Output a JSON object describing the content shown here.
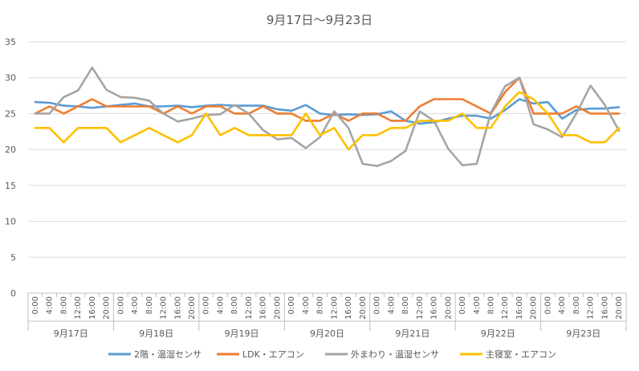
{
  "chart_data": {
    "type": "line",
    "title": "9月17日～9月23日",
    "xlabel": "",
    "ylabel": "",
    "ylim": [
      0,
      35
    ],
    "yticks": [
      0,
      5,
      10,
      15,
      20,
      25,
      30,
      35
    ],
    "grid": true,
    "legend_position": "bottom",
    "days": [
      "9月17日",
      "9月18日",
      "9月19日",
      "9月20日",
      "9月21日",
      "9月22日",
      "9月23日"
    ],
    "hours": [
      "0:00",
      "4:00",
      "8:00",
      "12:00",
      "16:00",
      "20:00"
    ],
    "series": [
      {
        "name": "2階・温湿センサ",
        "color": "#5B9BD5",
        "values": [
          26.6,
          26.5,
          26.1,
          26.0,
          25.8,
          26.0,
          26.2,
          26.4,
          26.0,
          26.0,
          26.1,
          25.9,
          26.1,
          26.2,
          26.1,
          26.1,
          26.1,
          25.6,
          25.4,
          26.2,
          25.0,
          24.8,
          24.9,
          24.8,
          24.9,
          25.3,
          24.0,
          23.6,
          23.8,
          24.3,
          24.7,
          24.7,
          24.3,
          25.5,
          27.0,
          26.4,
          26.6,
          24.3,
          25.5,
          25.7,
          25.7,
          25.9
        ]
      },
      {
        "name": "LDK・エアコン",
        "color": "#ED7D31",
        "values": [
          25.0,
          26.0,
          25.0,
          26.0,
          27.0,
          26.0,
          26.0,
          26.0,
          26.0,
          25.0,
          26.0,
          25.0,
          26.0,
          26.0,
          25.0,
          25.0,
          26.0,
          25.0,
          25.0,
          24.0,
          24.0,
          25.0,
          24.0,
          25.0,
          25.0,
          24.0,
          24.0,
          26.0,
          27.0,
          27.0,
          27.0,
          26.0,
          25.0,
          28.0,
          30.0,
          25.0,
          25.0,
          25.0,
          26.0,
          25.0,
          25.0,
          25.0
        ]
      },
      {
        "name": "外まわり・温湿センサ",
        "color": "#A5A5A5",
        "values": [
          25.0,
          25.0,
          27.3,
          28.2,
          31.4,
          28.3,
          27.3,
          27.2,
          26.8,
          25.0,
          23.9,
          24.3,
          24.8,
          24.9,
          26.2,
          25.0,
          22.7,
          21.4,
          21.6,
          20.2,
          21.7,
          25.3,
          23.0,
          18.0,
          17.7,
          18.4,
          19.8,
          25.3,
          24.0,
          20.1,
          17.8,
          18.0,
          25.1,
          28.8,
          30.0,
          23.5,
          22.8,
          21.7,
          25.0,
          28.9,
          26.2,
          22.6
        ]
      },
      {
        "name": "主寝室・エアコン",
        "color": "#FFC000",
        "values": [
          23.0,
          23.0,
          21.0,
          23.0,
          23.0,
          23.0,
          21.0,
          22.0,
          23.0,
          22.0,
          21.0,
          22.0,
          25.0,
          22.0,
          23.0,
          22.0,
          22.0,
          22.0,
          22.0,
          25.0,
          22.0,
          23.0,
          20.0,
          22.0,
          22.0,
          23.0,
          23.0,
          24.0,
          24.0,
          24.0,
          25.0,
          23.0,
          23.0,
          26.0,
          28.0,
          27.0,
          25.0,
          22.0,
          22.0,
          21.0,
          21.0,
          23.0
        ]
      }
    ]
  }
}
